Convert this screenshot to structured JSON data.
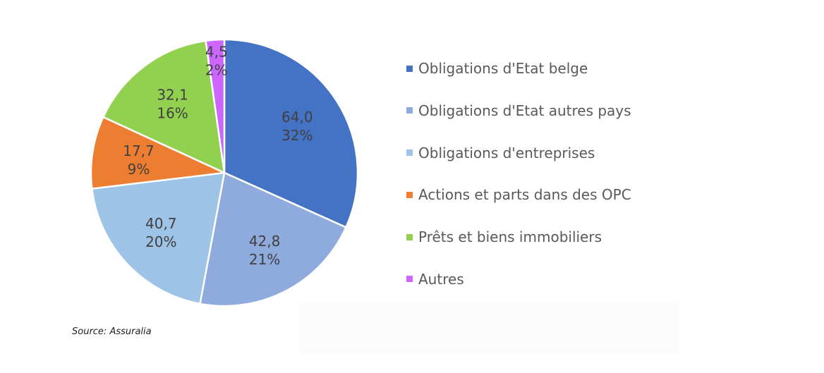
{
  "chart_data": {
    "type": "pie",
    "title": "",
    "start_angle_deg": 0,
    "direction": "clockwise",
    "slices": [
      {
        "label": "Obligations d'Etat belge",
        "value_text": "64,0",
        "pct_text": "32%",
        "value": 64.0,
        "color": "#4472C4"
      },
      {
        "label": "Obligations d'Etat autres pays",
        "value_text": "42,8",
        "pct_text": "21%",
        "value": 42.8,
        "color": "#8FAADC"
      },
      {
        "label": "Obligations d'entreprises",
        "value_text": "40,7",
        "pct_text": "20%",
        "value": 40.7,
        "color": "#9DC3E6"
      },
      {
        "label": "Actions et parts dans des OPC",
        "value_text": "17,7",
        "pct_text": "9%",
        "value": 17.7,
        "color": "#ED7D31"
      },
      {
        "label": "Prêts et biens immobiliers",
        "value_text": "32,1",
        "pct_text": "16%",
        "value": 32.1,
        "color": "#92D050"
      },
      {
        "label": "Autres",
        "value_text": "4,5",
        "pct_text": "2%",
        "value": 4.5,
        "color": "#CC66FF"
      }
    ],
    "legend_position": "right"
  },
  "source": "Source: Assuralia"
}
